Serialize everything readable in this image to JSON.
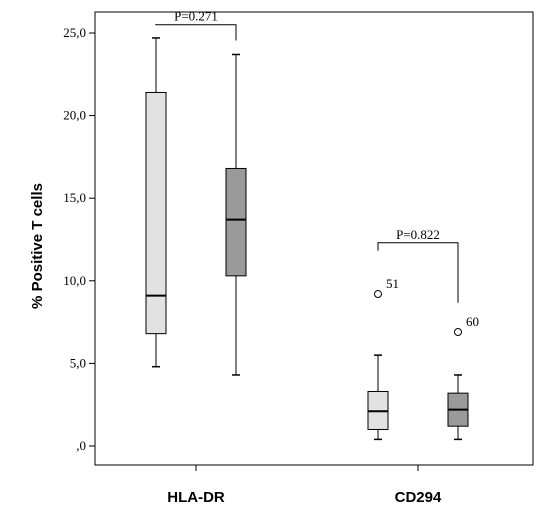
{
  "chart_data": {
    "type": "box",
    "ylabel": "% Positive T cells",
    "ylim": [
      0,
      25.5
    ],
    "y_ticks": [
      0,
      5,
      10,
      15,
      20,
      25
    ],
    "y_tick_labels": [
      ",0",
      "5,0",
      "10,0",
      "15,0",
      "20,0",
      "25,0"
    ],
    "categories": [
      "HLA-DR",
      "CD294"
    ],
    "grid": false,
    "legend": "none",
    "boxes": [
      {
        "category": "HLA-DR",
        "group": 1,
        "color": "#e2e2e2",
        "min": 4.8,
        "q1": 6.8,
        "median": 9.1,
        "q3": 21.4,
        "max": 24.7,
        "outliers": []
      },
      {
        "category": "HLA-DR",
        "group": 2,
        "color": "#9a9a9a",
        "min": 4.3,
        "q1": 10.3,
        "median": 13.7,
        "q3": 16.8,
        "max": 23.7,
        "outliers": []
      },
      {
        "category": "CD294",
        "group": 1,
        "color": "#e2e2e2",
        "min": 0.4,
        "q1": 1.0,
        "median": 2.1,
        "q3": 3.3,
        "max": 5.5,
        "outliers": [
          {
            "value": 9.2,
            "label": "51"
          }
        ]
      },
      {
        "category": "CD294",
        "group": 2,
        "color": "#9a9a9a",
        "min": 0.4,
        "q1": 1.2,
        "median": 2.2,
        "q3": 3.2,
        "max": 4.3,
        "outliers": [
          {
            "value": 6.9,
            "label": "60"
          }
        ]
      }
    ],
    "annotations": [
      {
        "text": "P=0.271",
        "category": "HLA-DR",
        "y": 25.5
      },
      {
        "text": "P=0.822",
        "category": "CD294",
        "y": 12.3
      }
    ]
  }
}
